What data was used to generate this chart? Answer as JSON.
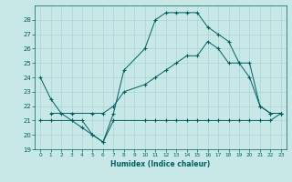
{
  "xlabel": "Humidex (Indice chaleur)",
  "xlim": [
    -0.5,
    23.5
  ],
  "ylim": [
    19,
    29
  ],
  "yticks": [
    19,
    20,
    21,
    22,
    23,
    24,
    25,
    26,
    27,
    28
  ],
  "xticks": [
    0,
    1,
    2,
    3,
    4,
    5,
    6,
    7,
    8,
    9,
    10,
    11,
    12,
    13,
    14,
    15,
    16,
    17,
    18,
    19,
    20,
    21,
    22,
    23
  ],
  "bg_color": "#c8e8e8",
  "line_color": "#006060",
  "grid_color": "#aad4d4",
  "series": [
    {
      "x": [
        0,
        1,
        2,
        3,
        4,
        5,
        6,
        7,
        8,
        10,
        11,
        12,
        13,
        14,
        15,
        16,
        17,
        18,
        19,
        20,
        21,
        22,
        23
      ],
      "y": [
        24,
        22.5,
        21.5,
        21.0,
        20.5,
        20.0,
        19.5,
        21.5,
        24.5,
        26.0,
        28.0,
        28.5,
        28.5,
        28.5,
        28.5,
        27.5,
        27.0,
        26.5,
        25.0,
        24.0,
        22.0,
        21.5,
        21.5
      ]
    },
    {
      "x": [
        0,
        1,
        3,
        4,
        5,
        6,
        7,
        10,
        11,
        12,
        13,
        14,
        15,
        16,
        17,
        18,
        19,
        20,
        21,
        22,
        23
      ],
      "y": [
        21.0,
        21.0,
        21.0,
        21.0,
        20.0,
        19.5,
        21.0,
        21.0,
        21.0,
        21.0,
        21.0,
        21.0,
        21.0,
        21.0,
        21.0,
        21.0,
        21.0,
        21.0,
        21.0,
        21.0,
        21.5
      ]
    },
    {
      "x": [
        1,
        3,
        5,
        6,
        7,
        8,
        10,
        11,
        12,
        13,
        14,
        15,
        16,
        17,
        18,
        19,
        20,
        21,
        22,
        23
      ],
      "y": [
        21.5,
        21.5,
        21.5,
        21.5,
        22.0,
        23.0,
        23.5,
        24.0,
        24.5,
        25.0,
        25.5,
        25.5,
        26.5,
        26.0,
        25.0,
        25.0,
        25.0,
        22.0,
        21.5,
        21.5
      ]
    }
  ]
}
